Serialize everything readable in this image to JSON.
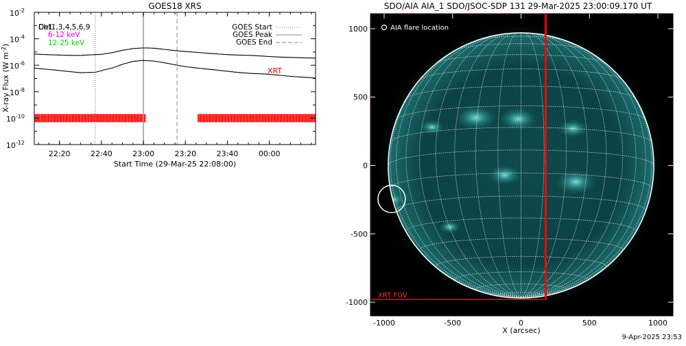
{
  "chart_data": [
    {
      "type": "line",
      "title": "GOES18 XRS",
      "xlabel": "Start Time (29-Mar-25 22:08:00)",
      "ylabel": "X-ray Flux (W m",
      "ylabel_exp": "-2",
      "ylabel_close": ")",
      "log_y": true,
      "xlim": [
        "22:08",
        "00:22"
      ],
      "ylim": [
        1e-12,
        0.01
      ],
      "x_ticks": [
        "22:20",
        "22:40",
        "23:00",
        "23:20",
        "23:40",
        "00:00"
      ],
      "y_ticks": [
        {
          "base": "10",
          "exp": "-2",
          "value": 0.01
        },
        {
          "base": "10",
          "exp": "-4",
          "value": 0.0001
        },
        {
          "base": "10",
          "exp": "-6",
          "value": 1e-06
        },
        {
          "base": "10",
          "exp": "-8",
          "value": 1e-08
        },
        {
          "base": "10",
          "exp": "-10",
          "value": 1e-10
        },
        {
          "base": "10",
          "exp": "-12",
          "value": 1e-12
        }
      ],
      "annotations": {
        "channels_overlap": [
          "Ch1",
          "Det1,3,4,5,6,9"
        ],
        "band_low": "6-12 keV",
        "band_high": "12-25 keV",
        "xrt_label": "XRT"
      },
      "series": [
        {
          "color": "#000000",
          "x": [
            "22:08",
            "22:20",
            "22:30",
            "22:40",
            "22:45",
            "22:50",
            "22:55",
            "23:00",
            "23:05",
            "23:10",
            "23:20",
            "23:30",
            "23:40",
            "23:50",
            "00:00",
            "00:10",
            "00:22"
          ],
          "values": [
            7e-06,
            6e-06,
            5.5e-06,
            6.5e-06,
            9e-06,
            1.4e-05,
            1.8e-05,
            2e-05,
            1.9e-05,
            1.6e-05,
            1.1e-05,
            8e-06,
            6.5e-06,
            5.5e-06,
            4.5e-06,
            4e-06,
            3.5e-06
          ]
        },
        {
          "color": "#000000",
          "x": [
            "22:08",
            "22:20",
            "22:30",
            "22:37",
            "22:45",
            "22:50",
            "22:55",
            "23:00",
            "23:05",
            "23:10",
            "23:20",
            "23:30",
            "23:40",
            "23:50",
            "00:00",
            "00:10",
            "00:22"
          ],
          "values": [
            6e-07,
            4e-07,
            2.8e-07,
            3e-07,
            6e-07,
            1.2e-06,
            2e-06,
            2.3e-06,
            2e-06,
            1.5e-06,
            8e-07,
            5e-07,
            3.5e-07,
            2.5e-07,
            2e-07,
            1.5e-07,
            1.1e-07
          ]
        }
      ],
      "event_lines": [
        {
          "label": "GOES Start",
          "x": "22:37",
          "style": "dotted",
          "color": "#888888"
        },
        {
          "label": "GOES Peak",
          "x": "23:00",
          "style": "solid",
          "color": "#a0a0a0"
        },
        {
          "label": "GOES End",
          "x": "23:16",
          "style": "dashed",
          "color": "#a0a0a0"
        }
      ],
      "xrt_coverage": {
        "color": "#ff0000",
        "y": 1e-10,
        "segments": [
          [
            "22:08",
            "23:01"
          ],
          [
            "23:26",
            "00:22"
          ]
        ]
      }
    },
    {
      "type": "image",
      "title": "SDO/AIA AIA_1 SDO/JSOC-SDP 131 29-Mar-2025 23:00:09.170 UT",
      "xlabel": "X (arcsec)",
      "xlim": [
        -1100,
        1110
      ],
      "ylim": [
        -1100,
        1110
      ],
      "x_ticks": [
        "-1000",
        "-500",
        "0",
        "500",
        "1000"
      ],
      "y_ticks": [
        "1000",
        "500",
        "0",
        "-500",
        "-1000"
      ],
      "legend": "AIA flare location",
      "legend_placement": "top-left",
      "fov_label": "XRT FOV",
      "colors": {
        "background": "#000000",
        "disk": "#0b3e40",
        "limb": "#ffffff",
        "grid": "#d8d8d8",
        "bright": "#5fd6cf",
        "fov": "#ff0000"
      },
      "solar_radius_arcsec": 970,
      "flare_location": [
        -945,
        -245
      ],
      "flare_circle_radius_arcsec": 100,
      "xrt_fov": {
        "x": [
          -1100,
          180
        ],
        "y": [
          -980,
          1110
        ]
      },
      "bright_regions": [
        {
          "x": -330,
          "y": 350,
          "r": 150
        },
        {
          "x": -20,
          "y": 340,
          "r": 140
        },
        {
          "x": 380,
          "y": 270,
          "r": 110
        },
        {
          "x": 400,
          "y": -120,
          "r": 150
        },
        {
          "x": -930,
          "y": -250,
          "r": 70
        },
        {
          "x": -120,
          "y": -70,
          "r": 120
        },
        {
          "x": -650,
          "y": 280,
          "r": 90
        },
        {
          "x": -520,
          "y": -450,
          "r": 80
        }
      ]
    }
  ],
  "footer": {
    "timestamp": "9-Apr-2025 23:53"
  }
}
